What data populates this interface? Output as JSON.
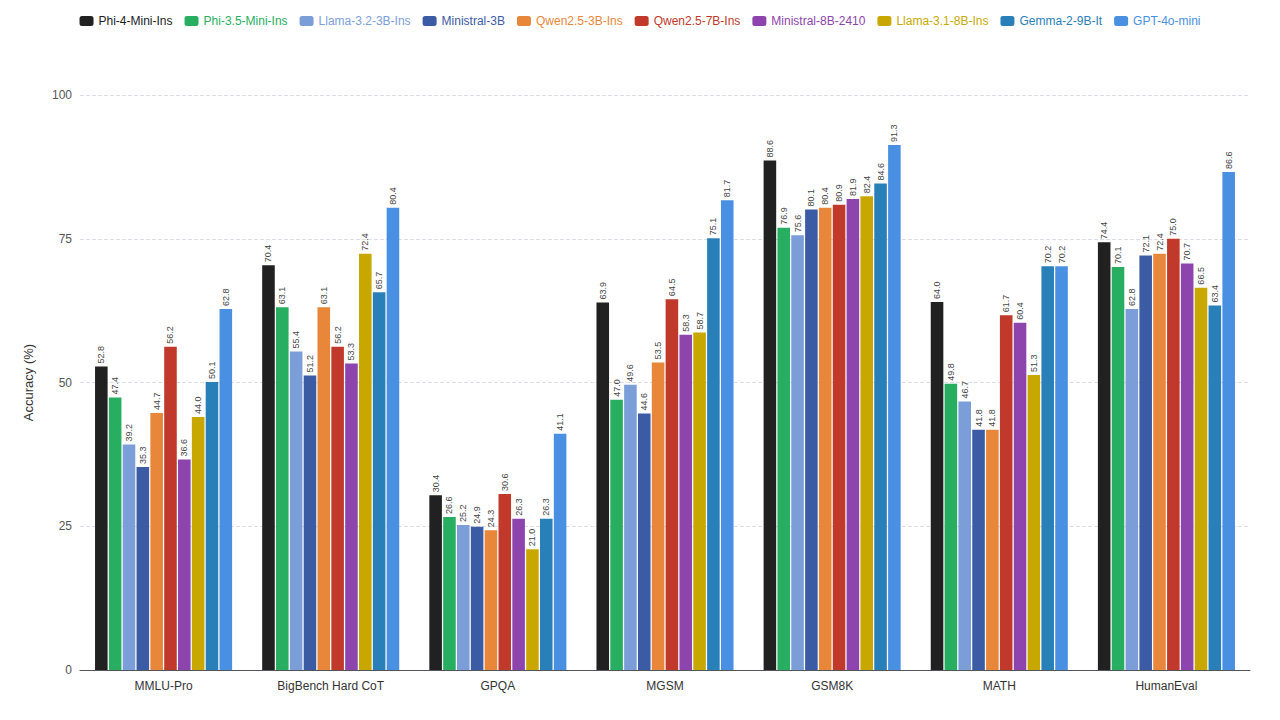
{
  "chart_data": {
    "type": "bar",
    "categories": [
      "MMLU-Pro",
      "BigBench Hard CoT",
      "GPQA",
      "MGSM",
      "GSM8K",
      "MATH",
      "HumanEval"
    ],
    "series": [
      {
        "name": "Phi-4-Mini-Ins",
        "color": "#212121",
        "values": [
          52.8,
          70.4,
          30.4,
          63.9,
          88.6,
          64.0,
          74.4
        ],
        "value_labels": [
          "52.8",
          "70.4",
          "30.4",
          "63.9",
          "88.6",
          "64.0",
          "74.4"
        ]
      },
      {
        "name": "Phi-3.5-Mini-Ins",
        "color": "#27ae60",
        "values": [
          47.4,
          63.1,
          26.6,
          47.0,
          76.9,
          49.8,
          70.1
        ],
        "value_labels": [
          "47.4",
          "63.1",
          "26.6",
          "47.0",
          "76.9",
          "49.8",
          "70.1"
        ]
      },
      {
        "name": "Llama-3.2-3B-Ins",
        "color": "#7b9ed9",
        "values": [
          39.2,
          55.4,
          25.2,
          49.6,
          75.6,
          46.7,
          62.8
        ],
        "value_labels": [
          "39.2",
          "55.4",
          "25.2",
          "49.6",
          "75.6",
          "46.7",
          "62.8"
        ]
      },
      {
        "name": "Ministral-3B",
        "color": "#3b5ba5",
        "values": [
          35.3,
          51.2,
          24.9,
          44.6,
          80.1,
          41.8,
          72.1
        ],
        "value_labels": [
          "35.3",
          "51.2",
          "24.9",
          "44.6",
          "80.1",
          "41.8",
          "72.1"
        ]
      },
      {
        "name": "Qwen2.5-3B-Ins",
        "color": "#e8873a",
        "values": [
          44.7,
          63.1,
          24.3,
          53.5,
          80.4,
          41.8,
          72.4
        ],
        "value_labels": [
          "44.7",
          "63.1",
          "24.3",
          "53.5",
          "80.4",
          "41.8",
          "72.4"
        ]
      },
      {
        "name": "Qwen2.5-7B-Ins",
        "color": "#c0392b",
        "values": [
          56.2,
          56.2,
          30.6,
          64.5,
          80.9,
          61.7,
          75.0
        ],
        "value_labels": [
          "56.2",
          "56.2",
          "30.6",
          "64.5",
          "80.9",
          "61.7",
          "75.0"
        ]
      },
      {
        "name": "Ministral-8B-2410",
        "color": "#8e44ad",
        "values": [
          36.6,
          53.3,
          26.3,
          58.3,
          81.9,
          60.4,
          70.7
        ],
        "value_labels": [
          "36.6",
          "53.3",
          "26.3",
          "58.3",
          "81.9",
          "60.4",
          "70.7"
        ]
      },
      {
        "name": "Llama-3.1-8B-Ins",
        "color": "#c8a800",
        "values": [
          44.0,
          72.4,
          21.0,
          58.7,
          82.4,
          51.3,
          66.5
        ],
        "value_labels": [
          "44.0",
          "72.4",
          "21.0",
          "58.7",
          "82.4",
          "51.3",
          "66.5"
        ]
      },
      {
        "name": "Gemma-2-9B-It",
        "color": "#2980b9",
        "values": [
          50.1,
          65.7,
          26.3,
          75.1,
          84.6,
          70.2,
          63.4
        ],
        "value_labels": [
          "50.1",
          "65.7",
          "26.3",
          "75.1",
          "84.6",
          "70.2",
          "63.4"
        ]
      },
      {
        "name": "GPT-4o-mini",
        "color": "#4a90e2",
        "values": [
          62.8,
          80.4,
          41.1,
          81.7,
          91.3,
          70.2,
          86.6
        ],
        "value_labels": [
          "62.8",
          "80.4",
          "41.1",
          "81.7",
          "91.3",
          "70.2",
          "86.6"
        ]
      }
    ],
    "ylabel": "Accuracy (%)",
    "ylim": [
      0,
      100
    ],
    "yticks": [
      0,
      25,
      50,
      75,
      100
    ],
    "grid": true,
    "legend": "top",
    "data_labels": true
  }
}
